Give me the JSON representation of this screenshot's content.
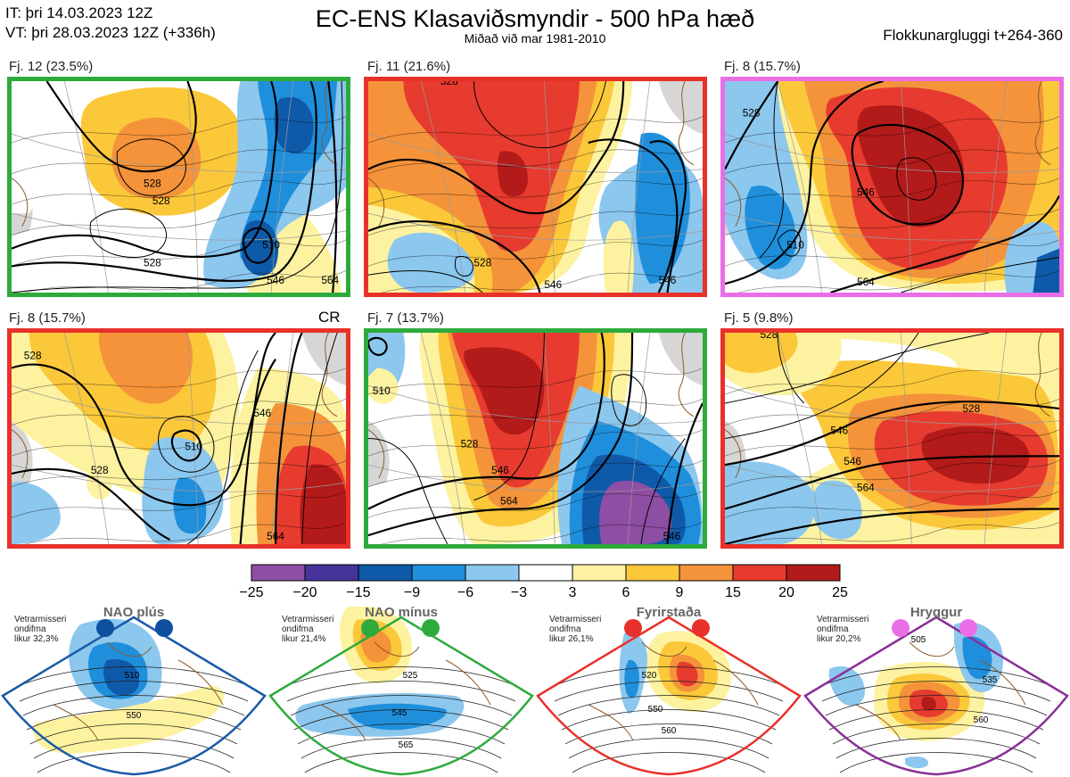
{
  "header": {
    "it": "IT: þri 14.03.2023 12Z",
    "vt": "VT: þri 28.03.2023 12Z  (+336h)",
    "title": "EC-ENS Klasaviðsmyndir - 500 hPa hæð",
    "subtitle": "Miðað við mar 1981-2010",
    "window": "Flokkunargluggi t+264-360"
  },
  "clusters": [
    {
      "label": "Fj. 12 (23.5%)",
      "frame_color": "#2eaa3c"
    },
    {
      "label": "Fj. 11 (21.6%)",
      "frame_color": "#e8312a"
    },
    {
      "label": "Fj. 8 (15.7%)",
      "frame_color": "#ea6ee6"
    },
    {
      "label": "Fj. 8 (15.7%)",
      "frame_color": "#e8312a",
      "tag": "CR"
    },
    {
      "label": "Fj. 7 (13.7%)",
      "frame_color": "#2eaa3c"
    },
    {
      "label": "Fj. 5 (9.8%)",
      "frame_color": "#e8312a"
    }
  ],
  "chart_data": {
    "type": "heatmap",
    "colorbar": {
      "ticks": [
        "−25",
        "−20",
        "−15",
        "−9",
        "−6",
        "−3",
        "3",
        "6",
        "9",
        "15",
        "20",
        "25"
      ],
      "colors": [
        "#8e4ea3",
        "#46349a",
        "#0f5aa8",
        "#1f8fdc",
        "#8cc7ee",
        "#ffffff",
        "#fdf2a0",
        "#fbc83a",
        "#f4933a",
        "#e63b2e",
        "#b31a1a"
      ]
    },
    "contour_labels": [
      [
        "528",
        "510",
        "528",
        "528",
        "546",
        "564"
      ],
      [
        "528",
        "528",
        "546",
        "546"
      ],
      [
        "528",
        "546",
        "564",
        "510"
      ],
      [
        "528",
        "510",
        "528",
        "546",
        "564"
      ],
      [
        "528",
        "546",
        "564",
        "546",
        "510"
      ],
      [
        "528",
        "546",
        "528",
        "546",
        "564"
      ]
    ]
  },
  "regimes": [
    {
      "title": "NAO plús",
      "note": [
        "Vetrarmisseri",
        "ondifma",
        "likur 32,3%"
      ],
      "frame_color": "#1a5aa8",
      "dot_color": "#0f4fa0",
      "labels": [
        "510",
        "550"
      ]
    },
    {
      "title": "NAO mínus",
      "note": [
        "Vetrarmisseri",
        "ondifma",
        "likur 21,4%"
      ],
      "frame_color": "#2eaa3c",
      "dot_color": "#2eaa3c",
      "labels": [
        "525",
        "545",
        "565"
      ]
    },
    {
      "title": "Fyrirstaða",
      "note": [
        "Vetrarmisseri",
        "ondifma",
        "likur 26,1%"
      ],
      "frame_color": "#e8312a",
      "dot_color": "#e8312a",
      "labels": [
        "520",
        "550",
        "560"
      ]
    },
    {
      "title": "Hryggur",
      "note": [
        "Vetrarmisseri",
        "ondifma",
        "likur 20,2%"
      ],
      "frame_color": "#8a2f96",
      "dot_color": "#ea6ee6",
      "labels": [
        "505",
        "535",
        "560"
      ]
    }
  ]
}
